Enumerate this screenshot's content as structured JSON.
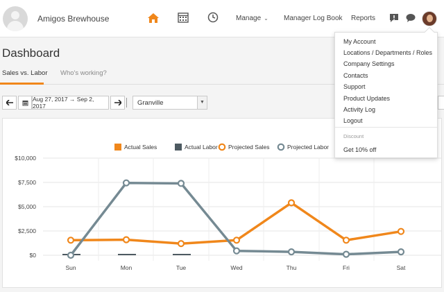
{
  "header": {
    "brand": "Amigos Brewhouse",
    "nav": {
      "home_icon": "home-icon",
      "schedule_icon": "calendar-grid-icon",
      "timeclock_icon": "clock-icon",
      "manage_label": "Manage",
      "manager_log_label": "Manager Log Book",
      "reports_label": "Reports",
      "alerts_icon": "alert-icon",
      "messages_icon": "chat-bubble-icon"
    },
    "accent": "#f0871b"
  },
  "page": {
    "title": "Dashboard",
    "tabs": [
      {
        "label": "Sales vs. Labor",
        "active": true
      },
      {
        "label": "Who's working?",
        "active": false
      }
    ]
  },
  "toolbar": {
    "prev_icon": "arrow-left-icon",
    "calendar_icon": "calendar-icon",
    "date_range": "Aug 27, 2017 → Sep 2, 2017",
    "next_icon": "arrow-right-icon",
    "location": "Granville"
  },
  "menu": {
    "items": [
      "My Account",
      "Locations / Departments / Roles",
      "Company Settings",
      "Contacts",
      "Support",
      "Product Updates",
      "Activity Log",
      "Logout"
    ],
    "section_label": "Discount",
    "discount_item": "Get 10% off"
  },
  "chart_data": {
    "type": "line",
    "categories": [
      "Sun",
      "Mon",
      "Tue",
      "Wed",
      "Thu",
      "Fri",
      "Sat"
    ],
    "y_ticks": [
      "$0",
      "$2,500",
      "$5,000",
      "$7,500",
      "$10,000"
    ],
    "ylim": [
      0,
      10000
    ],
    "grid": true,
    "legend_position": "top",
    "series": [
      {
        "name": "Actual Sales",
        "kind": "bar",
        "color": "#f0871b",
        "values": [
          0,
          0,
          0,
          null,
          null,
          null,
          null
        ]
      },
      {
        "name": "Actual Labor",
        "kind": "bar",
        "color": "#4d5a61",
        "values": [
          120,
          120,
          120,
          null,
          null,
          null,
          null
        ]
      },
      {
        "name": "Projected Sales",
        "kind": "line",
        "color": "#f0871b",
        "values": [
          1550,
          1600,
          1200,
          1550,
          5400,
          1550,
          2450
        ]
      },
      {
        "name": "Projected Labor",
        "kind": "line",
        "color": "#758a93",
        "values": [
          0,
          7450,
          7400,
          450,
          350,
          100,
          350
        ]
      }
    ]
  }
}
